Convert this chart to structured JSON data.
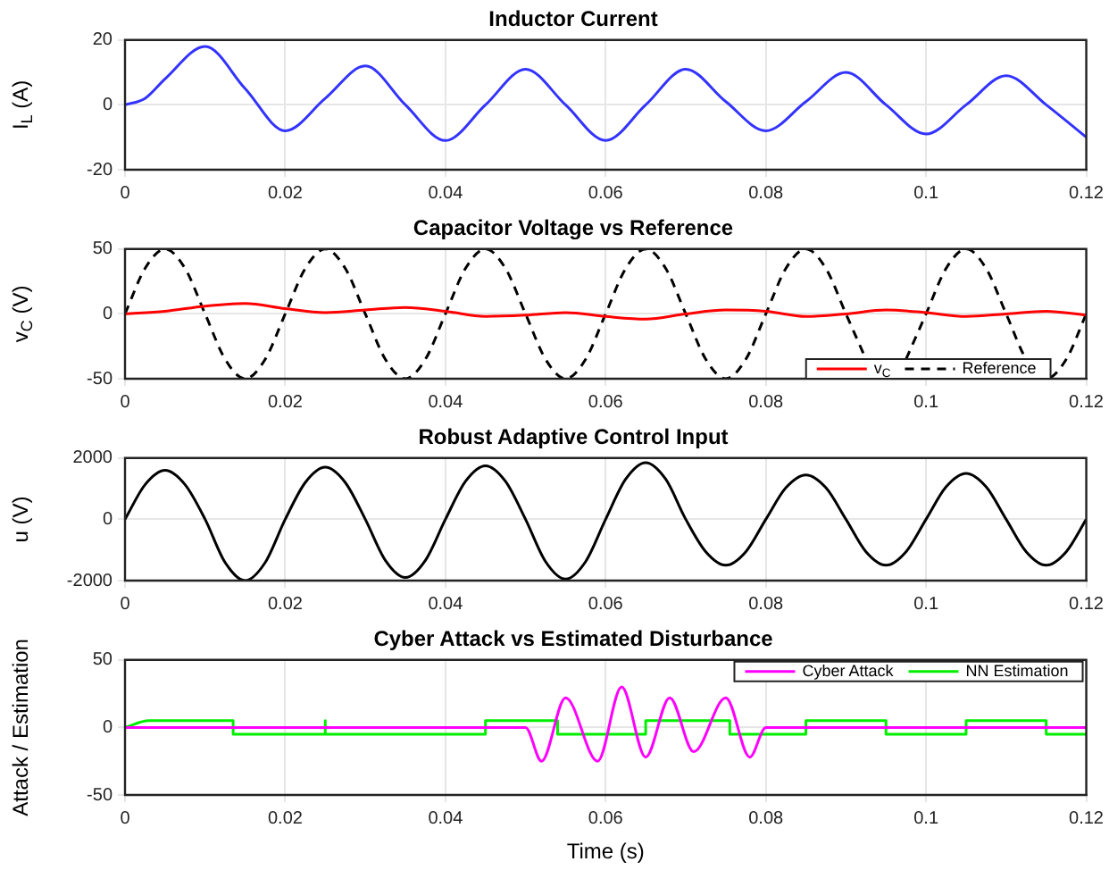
{
  "chart_data": [
    {
      "type": "line",
      "title": "Inductor Current",
      "ylabel": "I$_{L}$ (A)",
      "xlim": [
        0,
        0.12
      ],
      "xticks": [
        0,
        0.02,
        0.04,
        0.06,
        0.08,
        0.1,
        0.12
      ],
      "ylim": [
        -20,
        20
      ],
      "yticks": [
        -20,
        0,
        20
      ],
      "grid": true,
      "legend": false,
      "x": [
        0,
        0.0025,
        0.005,
        0.01,
        0.015,
        0.02,
        0.025,
        0.03,
        0.035,
        0.04,
        0.045,
        0.05,
        0.055,
        0.06,
        0.065,
        0.07,
        0.075,
        0.08,
        0.085,
        0.09,
        0.095,
        0.1,
        0.105,
        0.11,
        0.115,
        0.12
      ],
      "series": [
        {
          "color": "#3333ff",
          "values": [
            0,
            2,
            8,
            18,
            5,
            -8,
            2,
            12,
            0,
            -11,
            0,
            11,
            0,
            -11,
            0,
            11,
            1,
            -8,
            1,
            10,
            0,
            -9,
            0,
            9,
            0,
            -10
          ]
        }
      ]
    },
    {
      "type": "line",
      "title": "Capacitor Voltage vs Reference",
      "ylabel": "v$_{C}$ (V)",
      "xlim": [
        0,
        0.12
      ],
      "xticks": [
        0,
        0.02,
        0.04,
        0.06,
        0.08,
        0.1,
        0.12
      ],
      "ylim": [
        -50,
        50
      ],
      "yticks": [
        -50,
        0,
        50
      ],
      "grid": true,
      "legend": "bottom right",
      "series": [
        {
          "name": "v$_{C}$",
          "color": "#ff0000",
          "line_style": "solid",
          "x": [
            0,
            0.005,
            0.01,
            0.015,
            0.02,
            0.025,
            0.03,
            0.035,
            0.04,
            0.045,
            0.05,
            0.055,
            0.06,
            0.065,
            0.07,
            0.075,
            0.08,
            0.085,
            0.09,
            0.095,
            0.1,
            0.105,
            0.11,
            0.115,
            0.12
          ],
          "values": [
            0,
            2,
            6,
            8,
            4,
            1,
            3,
            5,
            2,
            -2,
            -1,
            1,
            -2,
            -4,
            0,
            3,
            2,
            -2,
            0,
            3,
            1,
            -2,
            0,
            2,
            -1
          ]
        },
        {
          "name": "Reference",
          "color": "#000000",
          "line_style": "dashed",
          "x": [
            0,
            0.0025,
            0.005,
            0.0075,
            0.01,
            0.0125,
            0.015,
            0.0175,
            0.02,
            0.0225,
            0.025,
            0.0275,
            0.03,
            0.0325,
            0.035,
            0.0375,
            0.04,
            0.0425,
            0.045,
            0.0475,
            0.05,
            0.0525,
            0.055,
            0.0575,
            0.06,
            0.0625,
            0.065,
            0.0675,
            0.07,
            0.0725,
            0.075,
            0.0775,
            0.08,
            0.0825,
            0.085,
            0.0875,
            0.09,
            0.0925,
            0.095,
            0.0975,
            0.1,
            0.1025,
            0.105,
            0.1075,
            0.11,
            0.1125,
            0.115,
            0.1175,
            0.12
          ],
          "values": [
            0,
            35,
            50,
            35,
            0,
            -35,
            -50,
            -35,
            0,
            35,
            50,
            35,
            0,
            -35,
            -50,
            -35,
            0,
            35,
            50,
            35,
            0,
            -35,
            -50,
            -35,
            0,
            35,
            50,
            35,
            0,
            -35,
            -50,
            -35,
            0,
            35,
            50,
            35,
            0,
            -35,
            null,
            -35,
            0,
            35,
            50,
            35,
            0,
            -35,
            -50,
            -35,
            0
          ]
        }
      ]
    },
    {
      "type": "line",
      "title": "Robust Adaptive Control Input",
      "ylabel": "u (V)",
      "xlim": [
        0,
        0.12
      ],
      "xticks": [
        0,
        0.02,
        0.04,
        0.06,
        0.08,
        0.1,
        0.12
      ],
      "ylim": [
        -2000,
        2000
      ],
      "yticks": [
        -2000,
        0,
        2000
      ],
      "grid": true,
      "legend": false,
      "x": [
        0,
        0.0025,
        0.005,
        0.0075,
        0.01,
        0.0125,
        0.015,
        0.0175,
        0.02,
        0.0225,
        0.025,
        0.0275,
        0.03,
        0.0325,
        0.035,
        0.0375,
        0.04,
        0.0425,
        0.045,
        0.0475,
        0.05,
        0.0525,
        0.055,
        0.0575,
        0.06,
        0.0625,
        0.065,
        0.0675,
        0.07,
        0.0725,
        0.075,
        0.0775,
        0.08,
        0.0825,
        0.085,
        0.0875,
        0.09,
        0.0925,
        0.095,
        0.0975,
        0.1,
        0.1025,
        0.105,
        0.1075,
        0.11,
        0.1125,
        0.115,
        0.1175,
        0.12
      ],
      "series": [
        {
          "color": "#000000",
          "values": [
            0,
            1130,
            1600,
            1130,
            0,
            -1410,
            -2000,
            -1410,
            0,
            1200,
            1700,
            1200,
            0,
            -1340,
            -1900,
            -1340,
            0,
            1240,
            1750,
            1240,
            0,
            -1380,
            -1950,
            -1380,
            0,
            1310,
            1850,
            1310,
            0,
            -1060,
            -1500,
            -1060,
            0,
            1030,
            1450,
            1030,
            0,
            -1060,
            -1500,
            -1060,
            0,
            1060,
            1500,
            1060,
            0,
            -1060,
            -1500,
            -1060,
            0
          ]
        }
      ]
    },
    {
      "type": "line",
      "title": "Cyber Attack vs Estimated Disturbance",
      "xlabel": "Time (s)",
      "ylabel": "Attack / Estimation",
      "xlim": [
        0,
        0.12
      ],
      "xticks": [
        0,
        0.02,
        0.04,
        0.06,
        0.08,
        0.1,
        0.12
      ],
      "ylim": [
        -50,
        50
      ],
      "yticks": [
        -50,
        0,
        50
      ],
      "grid": true,
      "legend": "top right",
      "series": [
        {
          "name": "Cyber Attack",
          "color": "#ff00ff",
          "x": [
            0,
            0.05,
            0.052,
            0.055,
            0.059,
            0.062,
            0.065,
            0.068,
            0.071,
            0.075,
            0.078,
            0.08,
            0.12
          ],
          "values": [
            0,
            0,
            -25,
            22,
            -25,
            30,
            -22,
            22,
            -18,
            22,
            -22,
            0,
            0
          ]
        },
        {
          "name": "NN Estimation",
          "color": "#00ee00",
          "x": [
            0,
            0.003,
            0.0135,
            0.0135,
            0.025,
            0.025,
            0.025,
            0.045,
            0.045,
            0.054,
            0.054,
            0.065,
            0.065,
            0.0755,
            0.0755,
            0.085,
            0.085,
            0.095,
            0.095,
            0.105,
            0.105,
            0.115,
            0.115,
            0.12
          ],
          "values": [
            0,
            5,
            5,
            -5,
            -5,
            5,
            -5,
            -5,
            5,
            5,
            -5,
            -5,
            5,
            5,
            -5,
            -5,
            5,
            5,
            -5,
            -5,
            5,
            5,
            -5,
            -5
          ]
        }
      ]
    }
  ]
}
